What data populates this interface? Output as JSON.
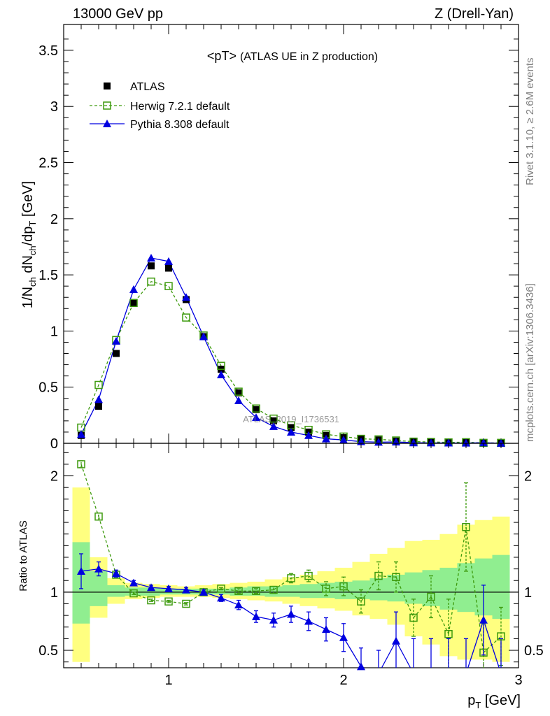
{
  "header": {
    "left": "13000 GeV pp",
    "right": "Z (Drell-Yan)",
    "inner_title": "<pT>",
    "inner_subtitle": "(ATLAS UE in Z production)"
  },
  "side_labels": {
    "rivet": "Rivet 3.1.10, ≥ 2.6M events",
    "mcplots": "mcplots.cern.ch [arXiv:1306.3436]"
  },
  "watermark": "ATLAS_2019_I1736531",
  "colors": {
    "atlas": "#000000",
    "herwig": "#3d9a0d",
    "pythia": "#0000e0",
    "band_inner": "#90ee90",
    "band_outer": "#ffff80"
  },
  "chart_data": [
    {
      "type": "scatter",
      "id": "main",
      "ylabel_main": "1/N",
      "ylabel_sub1": "ch",
      "ylabel_mid": " dN",
      "ylabel_sub2": "ch",
      "ylabel_end": "/dp",
      "ylabel_sub3": "T",
      "ylabel_unit": " [GeV]",
      "xlim": [
        0.4,
        3.0
      ],
      "ylim": [
        0,
        3.73
      ],
      "yticks": [
        0,
        0.5,
        1,
        1.5,
        2,
        2.5,
        3,
        3.5
      ],
      "ytick_labels": [
        "0",
        "0.5",
        "1",
        "1.5",
        "2",
        "2.5",
        "3",
        "3.5"
      ],
      "legend": [
        "ATLAS",
        "Herwig 7.2.1 default",
        "Pythia 8.308 default"
      ],
      "series": [
        {
          "name": "ATLAS",
          "x": [
            0.5,
            0.6,
            0.7,
            0.8,
            0.9,
            1.0,
            1.1,
            1.2,
            1.3,
            1.4,
            1.5,
            1.6,
            1.7,
            1.8,
            1.9,
            2.0,
            2.1,
            2.2,
            2.3,
            2.4,
            2.5,
            2.6,
            2.7,
            2.8,
            2.9
          ],
          "y": [
            0.07,
            0.33,
            0.8,
            1.25,
            1.58,
            1.56,
            1.28,
            0.95,
            0.66,
            0.45,
            0.3,
            0.2,
            0.14,
            0.1,
            0.07,
            0.05,
            0.04,
            0.03,
            0.02,
            0.015,
            0.012,
            0.01,
            0.008,
            0.006,
            0.005
          ]
        },
        {
          "name": "Herwig 7.2.1 default",
          "x": [
            0.5,
            0.6,
            0.7,
            0.8,
            0.9,
            1.0,
            1.1,
            1.2,
            1.3,
            1.4,
            1.5,
            1.6,
            1.7,
            1.8,
            1.9,
            2.0,
            2.1,
            2.2,
            2.3,
            2.4,
            2.5,
            2.6,
            2.7,
            2.8,
            2.9
          ],
          "y": [
            0.14,
            0.52,
            0.92,
            1.25,
            1.44,
            1.4,
            1.12,
            0.96,
            0.69,
            0.46,
            0.31,
            0.22,
            0.16,
            0.12,
            0.08,
            0.06,
            0.04,
            0.035,
            0.025,
            0.015,
            0.012,
            0.008,
            0.01,
            0.004,
            0.004
          ]
        },
        {
          "name": "Pythia 8.308 default",
          "x": [
            0.5,
            0.6,
            0.7,
            0.8,
            0.9,
            1.0,
            1.1,
            1.2,
            1.3,
            1.4,
            1.5,
            1.6,
            1.7,
            1.8,
            1.9,
            2.0,
            2.1,
            2.2,
            2.3,
            2.4,
            2.5,
            2.6,
            2.7,
            2.8,
            2.9
          ],
          "y": [
            0.08,
            0.39,
            0.91,
            1.37,
            1.65,
            1.62,
            1.3,
            0.95,
            0.61,
            0.38,
            0.23,
            0.15,
            0.1,
            0.07,
            0.04,
            0.03,
            0.015,
            0.01,
            0.012,
            0.005,
            0.004,
            0.003,
            0.002,
            0.005,
            0.001
          ]
        }
      ]
    },
    {
      "type": "scatter",
      "id": "ratio",
      "ylabel": "Ratio to ATLAS",
      "xlabel_main": "p",
      "xlabel_sub": "T",
      "xlabel_unit": " [GeV]",
      "xlim": [
        0.4,
        3.0
      ],
      "ylim": [
        0.35,
        2.28
      ],
      "xticks": [
        1,
        2,
        3
      ],
      "xtick_labels": [
        "1",
        "2",
        "3"
      ],
      "yticks": [
        0.5,
        1,
        2
      ],
      "ytick_labels": [
        "0.5",
        "1",
        "2"
      ],
      "bands": {
        "edges": [
          0.45,
          0.55,
          0.65,
          0.75,
          0.85,
          0.95,
          1.05,
          1.15,
          1.25,
          1.35,
          1.45,
          1.55,
          1.65,
          1.75,
          1.85,
          1.95,
          2.05,
          2.15,
          2.25,
          2.35,
          2.45,
          2.55,
          2.65,
          2.75,
          2.85,
          2.95
        ],
        "inner_low": [
          0.73,
          0.88,
          0.96,
          0.97,
          0.97,
          0.98,
          0.98,
          0.98,
          0.98,
          0.97,
          0.97,
          0.96,
          0.96,
          0.95,
          0.95,
          0.94,
          0.94,
          0.93,
          0.92,
          0.9,
          0.88,
          0.85,
          0.83,
          0.8,
          0.77
        ],
        "inner_high": [
          1.43,
          1.18,
          1.06,
          1.04,
          1.04,
          1.03,
          1.03,
          1.03,
          1.03,
          1.04,
          1.05,
          1.05,
          1.06,
          1.07,
          1.08,
          1.09,
          1.1,
          1.12,
          1.15,
          1.17,
          1.19,
          1.21,
          1.25,
          1.29,
          1.32
        ],
        "outer_low": [
          0.4,
          0.78,
          0.9,
          0.94,
          0.95,
          0.96,
          0.96,
          0.96,
          0.95,
          0.94,
          0.93,
          0.92,
          0.9,
          0.88,
          0.86,
          0.84,
          0.8,
          0.77,
          0.72,
          0.62,
          0.55,
          0.45,
          0.42,
          0.42,
          0.4
        ],
        "outer_high": [
          1.9,
          1.3,
          1.12,
          1.08,
          1.07,
          1.06,
          1.05,
          1.06,
          1.07,
          1.08,
          1.09,
          1.11,
          1.13,
          1.15,
          1.18,
          1.21,
          1.26,
          1.33,
          1.38,
          1.44,
          1.45,
          1.5,
          1.58,
          1.62,
          1.65
        ]
      },
      "series": [
        {
          "name": "Herwig 7.2.1 default",
          "x": [
            0.5,
            0.6,
            0.7,
            0.8,
            0.9,
            1.0,
            1.1,
            1.2,
            1.3,
            1.4,
            1.5,
            1.6,
            1.7,
            1.8,
            1.9,
            2.0,
            2.1,
            2.2,
            2.3,
            2.4,
            2.5,
            2.6,
            2.7,
            2.8,
            2.9
          ],
          "y": [
            2.1,
            1.65,
            1.15,
            0.99,
            0.93,
            0.92,
            0.9,
            1.0,
            1.03,
            1.01,
            1.01,
            1.02,
            1.12,
            1.14,
            1.03,
            1.05,
            0.92,
            1.14,
            1.13,
            0.78,
            0.96,
            0.64,
            1.56,
            0.48,
            0.62
          ],
          "err": [
            0.03,
            0.03,
            0.02,
            0.01,
            0.01,
            0.01,
            0.01,
            0.01,
            0.01,
            0.02,
            0.02,
            0.03,
            0.04,
            0.05,
            0.06,
            0.08,
            0.1,
            0.12,
            0.13,
            0.16,
            0.18,
            0.3,
            0.38,
            0.25,
            0.25
          ]
        },
        {
          "name": "Pythia 8.308 default",
          "x": [
            0.5,
            0.6,
            0.7,
            0.8,
            0.9,
            1.0,
            1.1,
            1.2,
            1.3,
            1.4,
            1.5,
            1.6,
            1.7,
            1.8,
            1.9,
            2.0,
            2.1,
            2.2,
            2.3,
            2.4,
            2.5,
            2.6,
            2.7,
            2.8,
            2.9
          ],
          "y": [
            1.18,
            1.2,
            1.16,
            1.08,
            1.04,
            1.03,
            1.02,
            1.0,
            0.95,
            0.89,
            0.79,
            0.76,
            0.81,
            0.75,
            0.68,
            0.61,
            0.36,
            0.3,
            0.58,
            0.3,
            0.3,
            0.3,
            0.3,
            0.76,
            0.3
          ],
          "err": [
            0.15,
            0.06,
            0.03,
            0.02,
            0.02,
            0.02,
            0.02,
            0.02,
            0.03,
            0.04,
            0.05,
            0.06,
            0.07,
            0.08,
            0.1,
            0.12,
            0.16,
            0.2,
            0.25,
            0.3,
            0.3,
            0.3,
            0.3,
            0.3,
            0.3
          ]
        }
      ]
    }
  ]
}
